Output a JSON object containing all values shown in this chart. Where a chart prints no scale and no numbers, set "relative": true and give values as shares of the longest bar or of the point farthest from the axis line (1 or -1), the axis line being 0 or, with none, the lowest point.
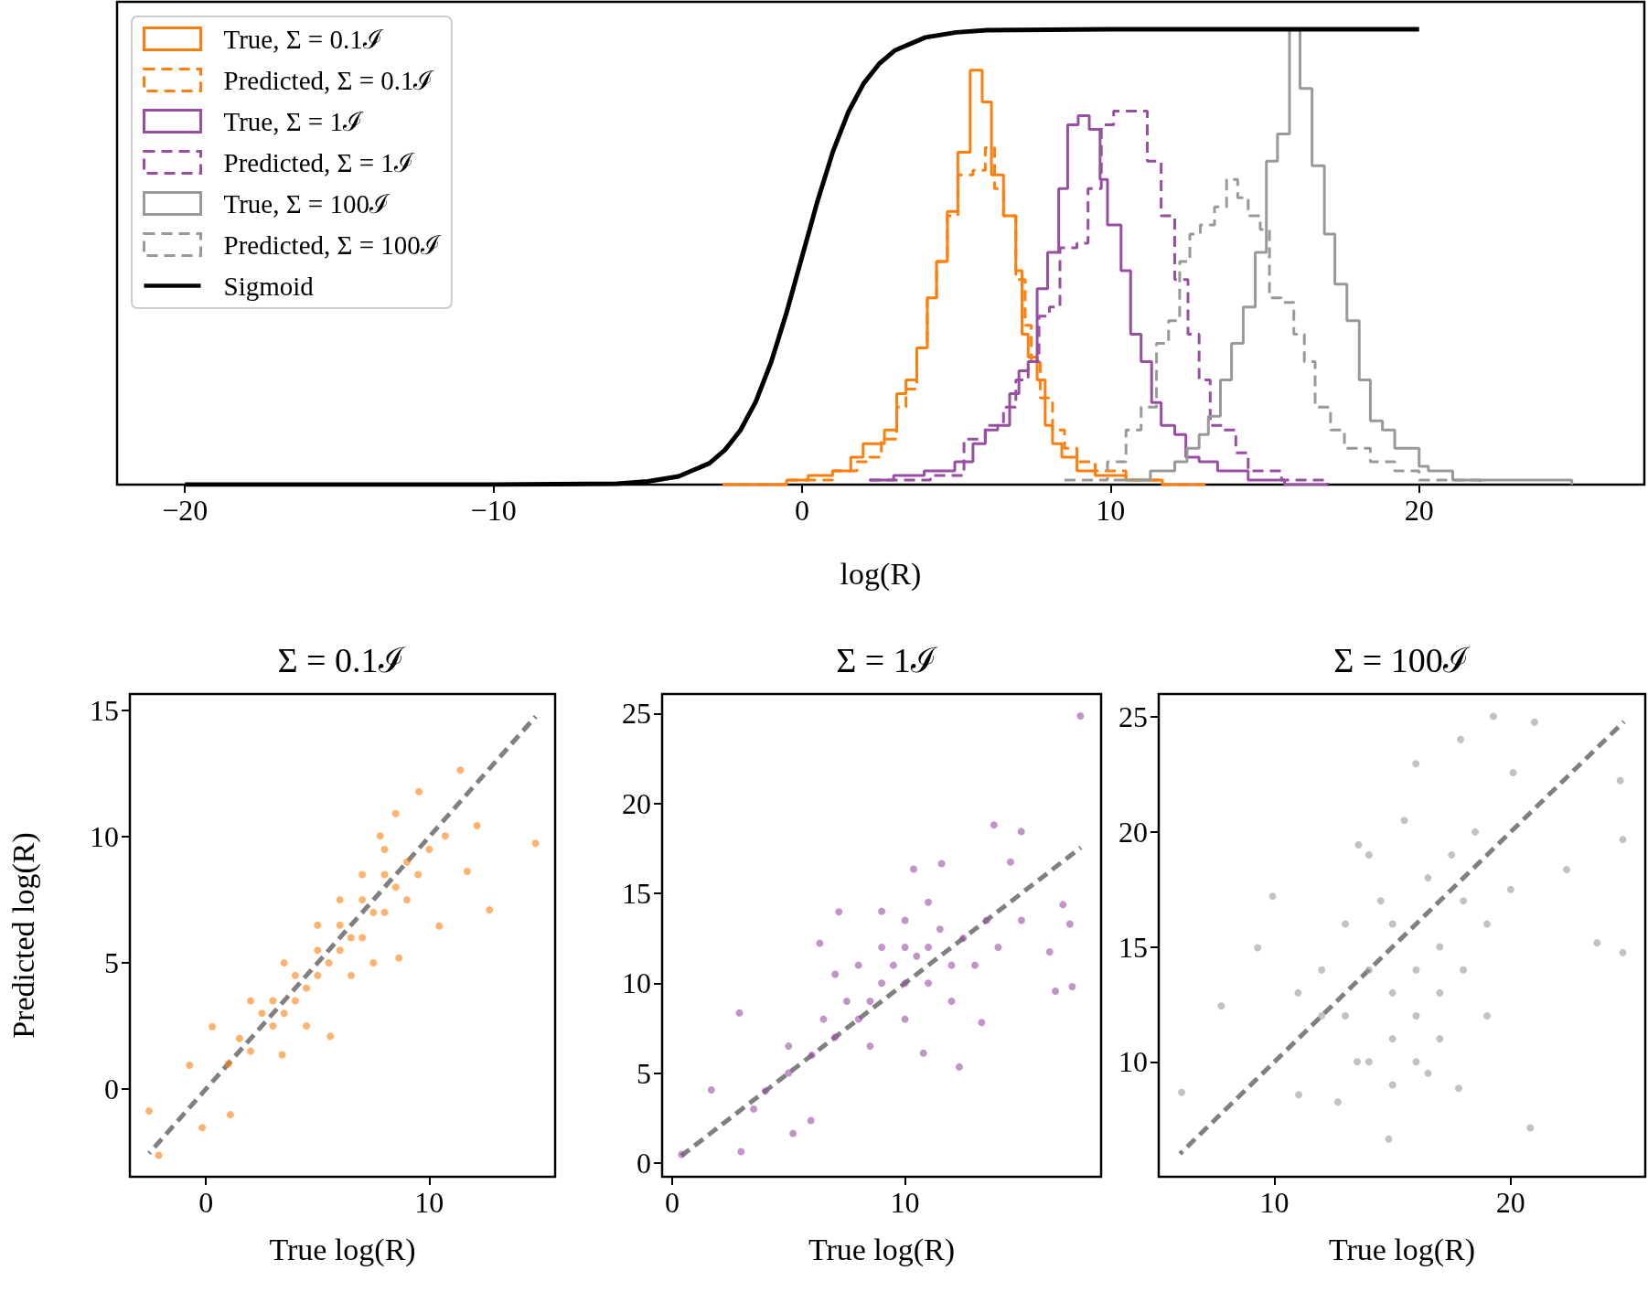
{
  "chart_data": [
    {
      "type": "step",
      "xlabel": "log(R)",
      "relative": true,
      "legend": "top left",
      "grid": false,
      "xlim": [
        -22.2,
        27.3
      ],
      "xticks": [
        {
          "value": -20,
          "label": "−20"
        },
        {
          "value": -10,
          "label": "−10"
        },
        0,
        10,
        20
      ],
      "series": [
        {
          "name": "True, Σ = 0.1ℐ",
          "color": "#ff7f0e",
          "line_style": "solid",
          "x": [
            -2.57,
            -0.5,
            0.2,
            0.99,
            1.58,
            1.98,
            2.38,
            2.67,
            3.07,
            3.37,
            3.72,
            4.06,
            4.36,
            4.71,
            5.05,
            5.45,
            5.84,
            6.14,
            6.53,
            6.93,
            7.13,
            7.33,
            7.62,
            7.88,
            8.12,
            8.42,
            8.91,
            9.5,
            10.5,
            11.68,
            13.07
          ],
          "values": [
            0.0,
            0.01,
            0.02,
            0.03,
            0.06,
            0.09,
            0.09,
            0.12,
            0.2,
            0.23,
            0.3,
            0.41,
            0.49,
            0.6,
            0.73,
            0.91,
            0.84,
            0.68,
            0.59,
            0.47,
            0.33,
            0.28,
            0.23,
            0.13,
            0.09,
            0.06,
            0.03,
            0.02,
            0.01,
            0.0,
            0.0
          ]
        },
        {
          "name": "Predicted, Σ = 0.1ℐ",
          "color": "#ff7f0e",
          "line_style": "dashed",
          "x": [
            -2.57,
            -0.5,
            0.99,
            1.78,
            2.18,
            2.57,
            3.07,
            3.37,
            3.72,
            4.06,
            4.36,
            4.71,
            5.05,
            5.54,
            5.94,
            6.24,
            6.53,
            6.93,
            7.23,
            7.43,
            7.72,
            8.12,
            8.51,
            8.91,
            9.5,
            10.5,
            11.68,
            13.07
          ],
          "values": [
            0.0,
            0.01,
            0.03,
            0.05,
            0.06,
            0.1,
            0.17,
            0.21,
            0.3,
            0.41,
            0.49,
            0.59,
            0.68,
            0.69,
            0.74,
            0.65,
            0.59,
            0.45,
            0.35,
            0.27,
            0.19,
            0.12,
            0.08,
            0.05,
            0.03,
            0.01,
            0.0,
            0.0
          ]
        },
        {
          "name": "True, Σ = 1ℐ",
          "color": "#984ea3",
          "line_style": "solid",
          "x": [
            2.18,
            2.97,
            3.96,
            4.95,
            5.54,
            5.94,
            6.34,
            6.73,
            7.03,
            7.33,
            7.62,
            7.96,
            8.32,
            8.61,
            8.95,
            9.31,
            9.66,
            9.9,
            10.34,
            10.65,
            10.99,
            11.33,
            11.64,
            12.08,
            12.44,
            12.87,
            13.47,
            14.46,
            15.64,
            17.03
          ],
          "values": [
            0.01,
            0.02,
            0.03,
            0.05,
            0.09,
            0.12,
            0.13,
            0.2,
            0.25,
            0.27,
            0.43,
            0.51,
            0.65,
            0.79,
            0.81,
            0.78,
            0.67,
            0.57,
            0.47,
            0.33,
            0.27,
            0.18,
            0.13,
            0.11,
            0.06,
            0.05,
            0.03,
            0.01,
            0.0,
            0.0
          ]
        },
        {
          "name": "Predicted, Σ = 1ℐ",
          "color": "#984ea3",
          "line_style": "dashed",
          "x": [
            2.18,
            4.16,
            5.25,
            5.54,
            5.94,
            6.53,
            6.93,
            7.33,
            7.68,
            8.02,
            8.36,
            8.91,
            9.27,
            9.7,
            10.1,
            10.79,
            11.19,
            11.64,
            12.08,
            12.51,
            12.87,
            13.23,
            13.62,
            14.06,
            14.46,
            15.54,
            17.03
          ],
          "values": [
            0.01,
            0.02,
            0.1,
            0.1,
            0.13,
            0.17,
            0.23,
            0.27,
            0.37,
            0.39,
            0.52,
            0.53,
            0.65,
            0.79,
            0.82,
            0.82,
            0.71,
            0.59,
            0.45,
            0.33,
            0.23,
            0.13,
            0.12,
            0.07,
            0.03,
            0.01,
            0.0
          ]
        },
        {
          "name": "True, Σ = 100ℐ",
          "color": "#999999",
          "line_style": "solid",
          "x": [
            10.1,
            11.29,
            12.08,
            12.48,
            12.87,
            13.17,
            13.56,
            13.92,
            14.3,
            14.69,
            15.05,
            15.41,
            15.8,
            16.14,
            16.53,
            16.93,
            17.27,
            17.66,
            18.06,
            18.42,
            18.81,
            19.21,
            20.0,
            20.3,
            21.09,
            24.95
          ],
          "values": [
            0.01,
            0.03,
            0.05,
            0.08,
            0.11,
            0.15,
            0.23,
            0.31,
            0.39,
            0.51,
            0.71,
            0.77,
            1.0,
            0.87,
            0.7,
            0.55,
            0.44,
            0.36,
            0.23,
            0.14,
            0.12,
            0.08,
            0.04,
            0.03,
            0.01,
            0.0
          ]
        },
        {
          "name": "Predicted, Σ = 100ℐ",
          "color": "#999999",
          "line_style": "dashed",
          "x": [
            8.51,
            9.9,
            10.5,
            10.99,
            11.49,
            11.88,
            12.24,
            12.57,
            12.91,
            13.37,
            13.76,
            14.12,
            14.46,
            14.85,
            15.15,
            15.54,
            15.94,
            16.28,
            16.63,
            17.13,
            17.58,
            18.02,
            18.42,
            19.21,
            20.0,
            21.19,
            21.98
          ],
          "values": [
            0.01,
            0.05,
            0.12,
            0.17,
            0.31,
            0.36,
            0.49,
            0.55,
            0.57,
            0.61,
            0.67,
            0.63,
            0.59,
            0.56,
            0.41,
            0.4,
            0.33,
            0.27,
            0.17,
            0.12,
            0.08,
            0.08,
            0.05,
            0.03,
            0.01,
            0.01,
            0.0
          ]
        },
        {
          "name": "Sigmoid",
          "type": "line",
          "color": "#000000",
          "line_style": "solid",
          "x": [
            -20,
            -10,
            -6,
            -5,
            -4,
            -3,
            -2.5,
            -2,
            -1.5,
            -1,
            -0.5,
            0,
            0.5,
            1,
            1.5,
            2,
            2.5,
            3,
            4,
            5,
            6,
            10,
            20
          ],
          "values": [
            0,
            0,
            0.002,
            0.007,
            0.018,
            0.047,
            0.076,
            0.119,
            0.182,
            0.269,
            0.378,
            0.5,
            0.622,
            0.731,
            0.818,
            0.881,
            0.924,
            0.953,
            0.982,
            0.993,
            0.998,
            1,
            1
          ]
        }
      ]
    },
    {
      "type": "scatter",
      "title": "Σ = 0.1ℐ",
      "xlabel": "True log(R)",
      "ylabel": "Predicted log(R)",
      "marker": "circle",
      "grid": false,
      "xlim": [
        -3.41,
        15.64
      ],
      "ylim": [
        -3.48,
        15.66
      ],
      "xticks": [
        0,
        10
      ],
      "yticks": [
        0,
        5,
        10,
        15
      ],
      "series": [
        {
          "color": "#ff7f0e",
          "x": [
            14.76,
            11.39,
            12.7,
            12.14,
            9.54,
            8.5,
            11.7,
            10.45,
            8.64,
            5.57,
            -2.55,
            -2.12,
            -0.17,
            1.09,
            -0.74,
            0.28,
            3.41,
            10.72,
            7.8,
            1,
            1.5,
            2,
            2.5,
            3,
            3,
            3.5,
            4,
            4,
            4.5,
            5,
            5,
            5.5,
            6,
            6,
            6.5,
            7,
            7,
            7.5,
            8,
            8,
            8.5,
            9,
            9,
            6,
            5,
            7,
            8,
            9.5,
            10,
            7.5,
            6.5,
            4.5,
            3.5,
            2
          ],
          "values": [
            9.74,
            12.64,
            7.1,
            10.44,
            11.79,
            10.92,
            8.63,
            6.46,
            5.19,
            2.09,
            -0.87,
            -2.63,
            -1.53,
            -1.02,
            0.94,
            2.47,
            1.36,
            10.03,
            10.03,
            1,
            2,
            1.5,
            3,
            2.5,
            3.5,
            3,
            4.5,
            3.5,
            4,
            5.5,
            4.5,
            5,
            6.5,
            5.5,
            6,
            7.5,
            6,
            7,
            8.5,
            7,
            8,
            9,
            7.5,
            7.5,
            6.5,
            8.5,
            9.5,
            8.5,
            9.5,
            5,
            4.5,
            2.5,
            5,
            3.5
          ]
        },
        {
          "type": "line",
          "marker": "none",
          "color": "#808080",
          "line_style": "dashed",
          "x": [
            -2.55,
            14.77
          ],
          "values": [
            -2.55,
            14.77
          ]
        }
      ]
    },
    {
      "type": "scatter",
      "title": "Σ = 1ℐ",
      "xlabel": "True log(R)",
      "marker": "circle",
      "grid": false,
      "xlim": [
        -0.43,
        18.42
      ],
      "ylim": [
        -0.77,
        26.09
      ],
      "xticks": [
        0,
        10
      ],
      "yticks": [
        0,
        5,
        10,
        15,
        20,
        25
      ],
      "series": [
        {
          "color": "#984ea3",
          "x": [
            17.53,
            13.82,
            14.99,
            16.78,
            17.08,
            16.21,
            16.46,
            17.18,
            12.33,
            10.79,
            7.16,
            6.34,
            2.89,
            1.68,
            2.96,
            5.19,
            5.96,
            0.41,
            11.57,
            10.37,
            13.29,
            14.53,
            8,
            8.5,
            9,
            9,
            9.5,
            10,
            10,
            10.5,
            10,
            11,
            11,
            11.5,
            12,
            8,
            7.5,
            7,
            6,
            5,
            6.5,
            12.5,
            13,
            13.5,
            9,
            11,
            8.5,
            10,
            12,
            7,
            14,
            15,
            4,
            5,
            3.5
          ],
          "values": [
            24.87,
            18.8,
            18.44,
            14.37,
            13.3,
            11.74,
            9.56,
            9.81,
            5.34,
            6.11,
            13.97,
            12.22,
            8.35,
            4.06,
            0.63,
            1.64,
            2.36,
            0.48,
            16.65,
            16.35,
            7.81,
            16.74,
            8,
            9,
            10,
            12,
            11,
            10,
            12,
            11.5,
            13.5,
            12,
            10,
            13,
            11,
            11,
            9,
            7,
            6,
            5,
            8,
            12.5,
            11,
            13.5,
            14,
            14.5,
            6.5,
            8,
            9,
            10.5,
            12,
            13.5,
            4,
            6.5,
            3
          ]
        },
        {
          "type": "line",
          "marker": "none",
          "color": "#808080",
          "line_style": "dashed",
          "x": [
            0.4,
            17.55
          ],
          "values": [
            0.4,
            17.55
          ]
        }
      ]
    },
    {
      "type": "scatter",
      "title": "Σ = 100ℐ",
      "xlabel": "True log(R)",
      "marker": "circle",
      "grid": false,
      "xlim": [
        5.1,
        25.7
      ],
      "ylim": [
        5.0,
        26.0
      ],
      "xticks": [
        10,
        20
      ],
      "yticks": [
        10,
        15,
        20,
        25
      ],
      "series": [
        {
          "color": "#999999",
          "x": [
            6.07,
            19.27,
            21.01,
            24.64,
            24.75,
            24.75,
            14.84,
            20.83,
            7.75,
            9.92,
            15.99,
            17.88,
            23.66,
            22.37,
            9.29,
            11.03,
            12.69,
            17.8,
            13.56,
            20.11,
            13,
            14,
            14,
            15,
            15,
            15,
            16,
            16,
            16,
            17,
            17,
            17,
            14.5,
            16.5,
            18,
            18,
            12,
            12,
            13,
            19,
            19,
            13.5,
            15,
            16.5,
            17.5,
            18.5,
            11,
            20,
            14,
            15.5
          ],
          "values": [
            8.67,
            25.03,
            24.78,
            22.23,
            19.67,
            14.75,
            6.64,
            7.13,
            12.43,
            17.2,
            22.97,
            24.02,
            15.17,
            18.36,
            14.96,
            8.57,
            8.25,
            8.85,
            19.44,
            22.58,
            12,
            10,
            14,
            11,
            13,
            16,
            12,
            14,
            10,
            13,
            15,
            11,
            17,
            18,
            14,
            17,
            14,
            12,
            16,
            12,
            16,
            10,
            9,
            9.5,
            19,
            20,
            13,
            17.5,
            19,
            20.5
          ]
        },
        {
          "type": "line",
          "marker": "none",
          "color": "#808080",
          "line_style": "dashed",
          "x": [
            6.0,
            24.8
          ],
          "values": [
            6.0,
            24.8
          ]
        }
      ]
    }
  ]
}
